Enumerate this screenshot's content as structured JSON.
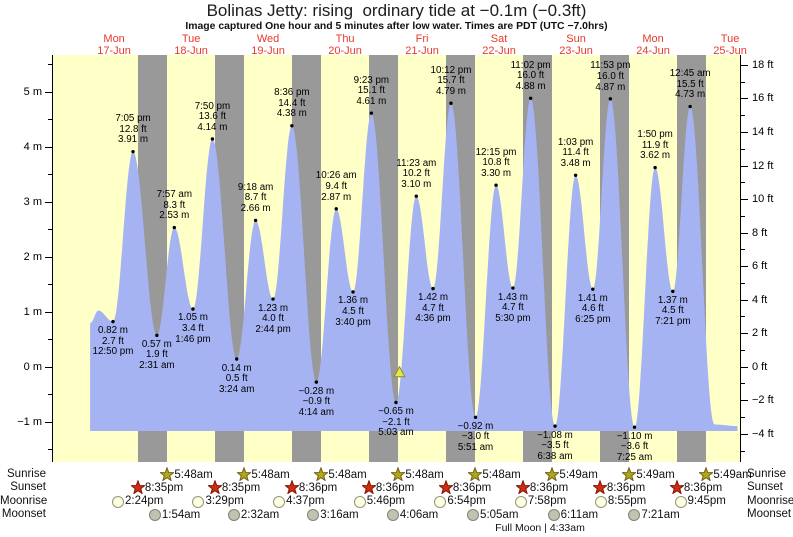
{
  "title": "Bolinas Jetty: rising  ordinary tide at −0.1m (−0.3ft)",
  "subtitle": "Image captured One hour and 5 minutes after low water. Times are PDT (UTC −7.0hrs)",
  "colors": {
    "day_bg": "#ffffc8",
    "night_bg": "#999999",
    "water": "#a6b3f3",
    "day_label": "#e8392b",
    "sunrise_star_fill": "#b3a41f",
    "sunrise_star_stroke": "#6e6410",
    "sunset_star_fill": "#cf2c12",
    "sunset_star_stroke": "#801505",
    "moonrise_fill": "#ffffe0",
    "moonrise_stroke": "#94947c",
    "moonset_fill": "#c2c2b2",
    "moonset_stroke": "#82826f",
    "marker_fill": "#e6e645",
    "marker_stroke": "#8a8a33"
  },
  "chart_data": {
    "type": "area",
    "title": "Tide height vs time, 17-Jun to 25-Jun",
    "time_origin_note": "t = hours since 17-Jun 00:00 PDT",
    "days": [
      {
        "name": "Mon",
        "date": "17-Jun"
      },
      {
        "name": "Tue",
        "date": "18-Jun"
      },
      {
        "name": "Wed",
        "date": "19-Jun"
      },
      {
        "name": "Thu",
        "date": "20-Jun"
      },
      {
        "name": "Fri",
        "date": "21-Jun"
      },
      {
        "name": "Sat",
        "date": "22-Jun"
      },
      {
        "name": "Sun",
        "date": "23-Jun"
      },
      {
        "name": "Mon",
        "date": "24-Jun"
      },
      {
        "name": "Tue",
        "date": "25-Jun"
      }
    ],
    "y_axis_left": {
      "unit": "m",
      "ticks": [
        {
          "v": 5,
          "label": "5 m"
        },
        {
          "v": 4,
          "label": "4 m"
        },
        {
          "v": 3,
          "label": "3 m"
        },
        {
          "v": 2,
          "label": "2 m"
        },
        {
          "v": 1,
          "label": "1 m"
        },
        {
          "v": 0,
          "label": "0 m"
        },
        {
          "v": -1,
          "label": "−1 m"
        }
      ]
    },
    "y_axis_right": {
      "unit": "ft",
      "ticks": [
        {
          "v": 18,
          "label": "18 ft"
        },
        {
          "v": 16,
          "label": "16 ft"
        },
        {
          "v": 14,
          "label": "14 ft"
        },
        {
          "v": 12,
          "label": "12 ft"
        },
        {
          "v": 10,
          "label": "10 ft"
        },
        {
          "v": 8,
          "label": "8 ft"
        },
        {
          "v": 6,
          "label": "6 ft"
        },
        {
          "v": 4,
          "label": "4 ft"
        },
        {
          "v": 2,
          "label": "2 ft"
        },
        {
          "v": 0,
          "label": "0 ft"
        },
        {
          "v": -2,
          "label": "−2 ft"
        },
        {
          "v": -4,
          "label": "−4 ft"
        }
      ]
    },
    "tide_extremes": [
      {
        "kind": "low",
        "t": 12.833,
        "m": "0.82",
        "ft": "2.7",
        "time": "12:50 pm"
      },
      {
        "kind": "high",
        "t": 19.083,
        "m": "3.91",
        "ft": "12.8",
        "time": "7:05 pm"
      },
      {
        "kind": "low",
        "t": 26.517,
        "m": "0.57",
        "ft": "1.9",
        "time": "2:31 am"
      },
      {
        "kind": "high",
        "t": 31.95,
        "m": "2.53",
        "ft": "8.3",
        "time": "7:57 am"
      },
      {
        "kind": "low",
        "t": 37.767,
        "m": "1.05",
        "ft": "3.4",
        "time": "1:46 pm"
      },
      {
        "kind": "high",
        "t": 43.833,
        "m": "4.14",
        "ft": "13.6",
        "time": "7:50 pm"
      },
      {
        "kind": "low",
        "t": 51.4,
        "m": "0.14",
        "ft": "0.5",
        "time": "3:24 am"
      },
      {
        "kind": "high",
        "t": 57.3,
        "m": "2.66",
        "ft": "8.7",
        "time": "9:18 am"
      },
      {
        "kind": "low",
        "t": 62.733,
        "m": "1.23",
        "ft": "4.0",
        "time": "2:44 pm"
      },
      {
        "kind": "high",
        "t": 68.6,
        "m": "4.38",
        "ft": "14.4",
        "time": "8:36 pm"
      },
      {
        "kind": "low",
        "t": 76.233,
        "m": "-0.28",
        "ft": "-0.9",
        "time": "4:14 am"
      },
      {
        "kind": "high",
        "t": 82.433,
        "m": "2.87",
        "ft": "9.4",
        "time": "10:26 am"
      },
      {
        "kind": "low",
        "t": 87.667,
        "m": "1.36",
        "ft": "4.5",
        "time": "3:40 pm"
      },
      {
        "kind": "high",
        "t": 93.383,
        "m": "4.61",
        "ft": "15.1",
        "time": "9:23 pm"
      },
      {
        "kind": "low",
        "t": 101.05,
        "m": "-0.65",
        "ft": "-2.1",
        "time": "5:03 am"
      },
      {
        "kind": "high",
        "t": 107.383,
        "m": "3.10",
        "ft": "10.2",
        "time": "11:23 am"
      },
      {
        "kind": "low",
        "t": 112.6,
        "m": "1.42",
        "ft": "4.7",
        "time": "4:36 pm"
      },
      {
        "kind": "high",
        "t": 118.2,
        "m": "4.79",
        "ft": "15.7",
        "time": "10:12 pm"
      },
      {
        "kind": "low",
        "t": 125.85,
        "m": "-0.92",
        "ft": "-3.0",
        "time": "5:51 am"
      },
      {
        "kind": "high",
        "t": 132.25,
        "m": "3.30",
        "ft": "10.8",
        "time": "12:15 pm"
      },
      {
        "kind": "low",
        "t": 137.5,
        "m": "1.43",
        "ft": "4.7",
        "time": "5:30 pm"
      },
      {
        "kind": "high",
        "t": 143.033,
        "m": "4.88",
        "ft": "16.0",
        "time": "11:02 pm"
      },
      {
        "kind": "low",
        "t": 150.633,
        "m": "-1.08",
        "ft": "-3.5",
        "time": "6:38 am"
      },
      {
        "kind": "high",
        "t": 157.05,
        "m": "3.48",
        "ft": "11.4",
        "time": "1:03 pm"
      },
      {
        "kind": "low",
        "t": 162.417,
        "m": "1.41",
        "ft": "4.6",
        "time": "6:25 pm"
      },
      {
        "kind": "high",
        "t": 167.883,
        "m": "4.87",
        "ft": "16.0",
        "time": "11:53 pm"
      },
      {
        "kind": "low",
        "t": 175.417,
        "m": "-1.10",
        "ft": "-3.6",
        "time": "7:25 am"
      },
      {
        "kind": "high",
        "t": 181.833,
        "m": "3.62",
        "ft": "11.9",
        "time": "1:50 pm"
      },
      {
        "kind": "low",
        "t": 187.35,
        "m": "1.37",
        "ft": "4.5",
        "time": "7:21 pm"
      },
      {
        "kind": "high",
        "t": 192.75,
        "m": "4.73",
        "ft": "15.5",
        "time": "12:45 am"
      }
    ],
    "curve_anchors_start": [
      {
        "t": 5.7,
        "h": 0.79
      },
      {
        "t": 8.3,
        "h": 1.02
      }
    ],
    "curve_anchors_end": [
      {
        "t": 200.3,
        "h": -1.05
      },
      {
        "t": 207.5,
        "h": -1.08
      }
    ],
    "current_marker": {
      "t": 102.13,
      "height_m": -0.1
    },
    "sun_moon": {
      "row_labels": [
        "Sunrise",
        "Sunset",
        "Moonrise",
        "Moonset"
      ],
      "sunrise": [
        {
          "t": 29.8,
          "time": "5:48am"
        },
        {
          "t": 53.8,
          "time": "5:48am"
        },
        {
          "t": 77.8,
          "time": "5:48am"
        },
        {
          "t": 101.8,
          "time": "5:48am"
        },
        {
          "t": 125.8,
          "time": "5:48am"
        },
        {
          "t": 149.82,
          "time": "5:49am"
        },
        {
          "t": 173.82,
          "time": "5:49am"
        },
        {
          "t": 197.82,
          "time": "5:49am"
        }
      ],
      "sunset": [
        {
          "t": 20.58,
          "time": "8:35pm"
        },
        {
          "t": 44.58,
          "time": "8:35pm"
        },
        {
          "t": 68.6,
          "time": "8:36pm"
        },
        {
          "t": 92.6,
          "time": "8:36pm"
        },
        {
          "t": 116.6,
          "time": "8:36pm"
        },
        {
          "t": 140.6,
          "time": "8:36pm"
        },
        {
          "t": 164.6,
          "time": "8:36pm"
        },
        {
          "t": 188.6,
          "time": "8:36pm"
        }
      ],
      "moonrise": [
        {
          "t": 14.4,
          "time": "2:24pm"
        },
        {
          "t": 39.48,
          "time": "3:29pm"
        },
        {
          "t": 64.62,
          "time": "4:37pm"
        },
        {
          "t": 89.77,
          "time": "5:46pm"
        },
        {
          "t": 114.9,
          "time": "6:54pm"
        },
        {
          "t": 139.97,
          "time": "7:58pm"
        },
        {
          "t": 164.92,
          "time": "8:55pm"
        },
        {
          "t": 189.75,
          "time": "9:45pm"
        }
      ],
      "moonset": [
        {
          "t": 25.9,
          "time": "1:54am"
        },
        {
          "t": 50.53,
          "time": "2:32am"
        },
        {
          "t": 75.27,
          "time": "3:16am"
        },
        {
          "t": 100.1,
          "time": "4:06am"
        },
        {
          "t": 125.08,
          "time": "5:05am"
        },
        {
          "t": 150.18,
          "time": "6:11am"
        },
        {
          "t": 175.35,
          "time": "7:21am"
        }
      ],
      "moon_phase": "Full Moon | 4:33am"
    }
  }
}
